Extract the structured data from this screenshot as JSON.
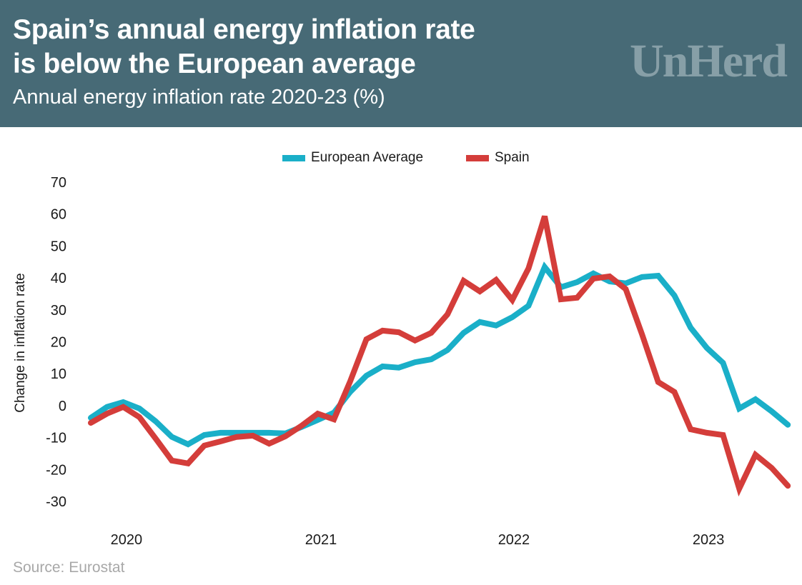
{
  "header": {
    "title_line1": "Spain’s annual energy inflation rate",
    "title_line2": "is below the European average",
    "subtitle": "Annual energy inflation rate 2020-23 (%)",
    "logo": "UnHerd",
    "background_color": "#476a76"
  },
  "source": "Source: Eurostat",
  "chart_data": {
    "type": "line",
    "title": "Spain’s annual energy inflation rate is below the European average",
    "subtitle": "Annual energy inflation rate 2020-23 (%)",
    "xlabel": "",
    "ylabel": "Change in inflation rate",
    "ylim": [
      -30,
      70
    ],
    "yticks": [
      70,
      60,
      50,
      40,
      30,
      20,
      10,
      0,
      -10,
      -20,
      -30
    ],
    "grid": false,
    "legend_position": "top-center",
    "x_count": 44,
    "xtick_labels": [
      {
        "index": 2.2,
        "label": "2020"
      },
      {
        "index": 14.2,
        "label": "2021"
      },
      {
        "index": 26.1,
        "label": "2022"
      },
      {
        "index": 38.1,
        "label": "2023"
      }
    ],
    "series": [
      {
        "name": "European Average",
        "color": "#1aafc8",
        "values": [
          -3.8,
          -0.4,
          1.1,
          -0.9,
          -4.9,
          -9.8,
          -12.1,
          -9.2,
          -8.5,
          -8.5,
          -8.5,
          -8.5,
          -8.7,
          -6.7,
          -4.5,
          -2.2,
          4.3,
          9.4,
          12.3,
          11.9,
          13.6,
          14.5,
          17.4,
          22.8,
          26.2,
          25.1,
          27.7,
          31.3,
          43.4,
          37.1,
          38.7,
          41.4,
          38.9,
          38.3,
          40.3,
          40.7,
          34.5,
          24.4,
          18.1,
          13.4,
          -0.9,
          2.0,
          -1.8,
          -6.0
        ]
      },
      {
        "name": "Spain",
        "color": "#d43d3a",
        "values": [
          -5.4,
          -2.5,
          -0.4,
          -3.6,
          -10.3,
          -17.2,
          -18.1,
          -12.5,
          -11.2,
          -9.8,
          -9.4,
          -11.9,
          -9.6,
          -6.3,
          -2.5,
          -4.3,
          7.6,
          20.8,
          23.5,
          23.0,
          20.4,
          22.8,
          28.6,
          39.1,
          35.8,
          39.4,
          33.1,
          43.0,
          59.3,
          33.3,
          33.8,
          39.8,
          40.5,
          36.5,
          22.4,
          7.4,
          4.3,
          -7.4,
          -8.5,
          -9.2,
          -26.0,
          -15.4,
          -19.5,
          -25.1
        ]
      }
    ]
  }
}
